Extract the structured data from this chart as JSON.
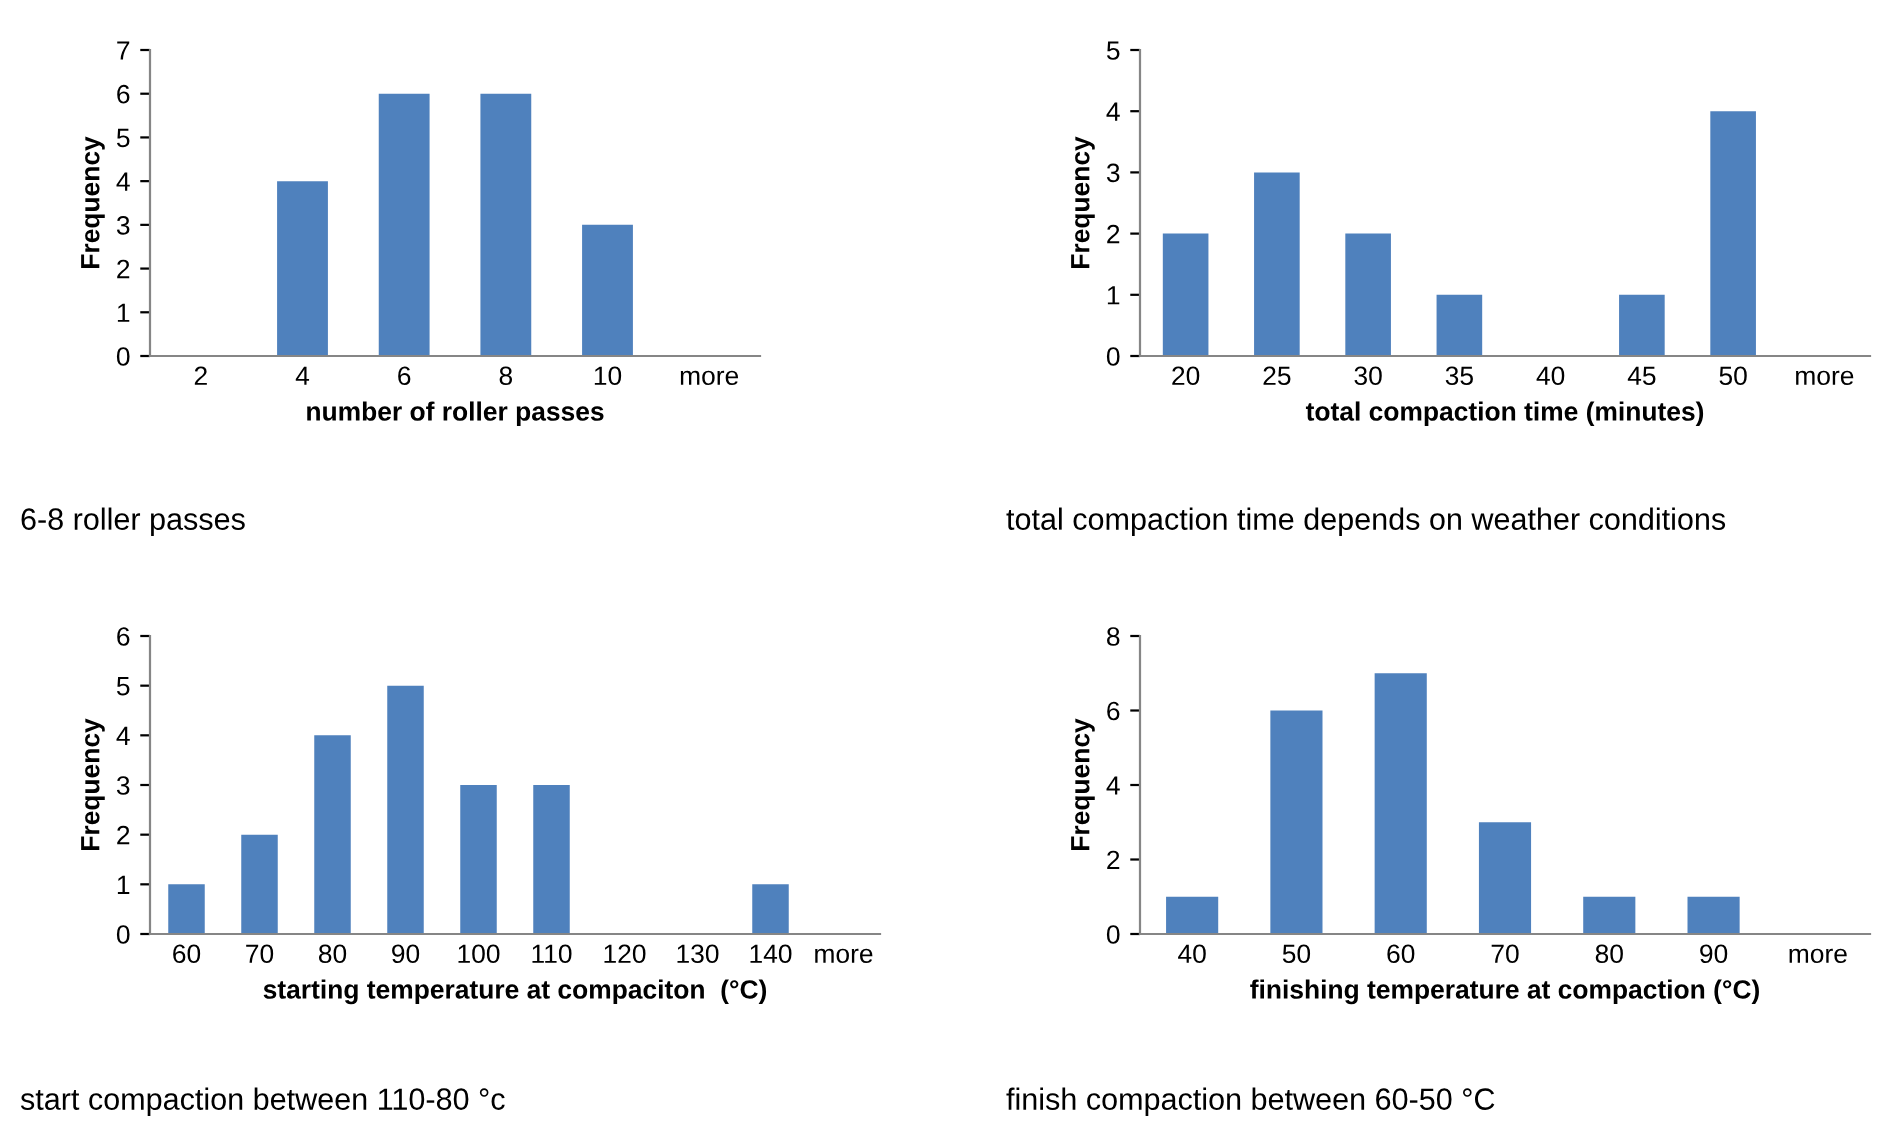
{
  "chart_data": [
    {
      "type": "bar",
      "categories": [
        "2",
        "4",
        "6",
        "8",
        "10",
        "more"
      ],
      "values": [
        0,
        4,
        6,
        6,
        3,
        0
      ],
      "color": "#4f81bd",
      "xlabel": "number of roller passes",
      "ylabel": "Frequency",
      "ylim": [
        0,
        7
      ],
      "yticks": [
        0,
        1,
        2,
        3,
        4,
        5,
        6,
        7
      ],
      "grid": false,
      "legend": false,
      "annotations": [
        "6-8 roller passes"
      ]
    },
    {
      "type": "bar",
      "categories": [
        "20",
        "25",
        "30",
        "35",
        "40",
        "45",
        "50",
        "more"
      ],
      "values": [
        2,
        3,
        2,
        1,
        0,
        1,
        4,
        0
      ],
      "color": "#4f81bd",
      "xlabel": "total compaction time (minutes)",
      "ylabel": "Frequency",
      "ylim": [
        0,
        5
      ],
      "yticks": [
        0,
        1,
        2,
        3,
        4,
        5
      ],
      "grid": false,
      "legend": false,
      "annotations": [
        "total compaction time depends on weather conditions"
      ]
    },
    {
      "type": "bar",
      "categories": [
        "60",
        "70",
        "80",
        "90",
        "100",
        "110",
        "120",
        "130",
        "140",
        "more"
      ],
      "values": [
        1,
        2,
        4,
        5,
        3,
        3,
        0,
        0,
        1,
        0
      ],
      "color": "#4f81bd",
      "xlabel": "starting temperature at compaciton  (°C)",
      "ylabel": "Frequency",
      "ylim": [
        0,
        6
      ],
      "yticks": [
        0,
        1,
        2,
        3,
        4,
        5,
        6
      ],
      "grid": false,
      "legend": false,
      "annotations": [
        "start compaction between 110-80 °c"
      ]
    },
    {
      "type": "bar",
      "categories": [
        "40",
        "50",
        "60",
        "70",
        "80",
        "90",
        "more"
      ],
      "values": [
        1,
        6,
        7,
        3,
        1,
        1,
        0
      ],
      "color": "#4f81bd",
      "xlabel": "finishing temperature at compaction (°C)",
      "ylabel": "Frequency",
      "ylim": [
        0,
        8
      ],
      "yticks": [
        0,
        2,
        4,
        6,
        8
      ],
      "grid": false,
      "legend": false,
      "annotations": [
        "finish compaction between 60-50 °C"
      ]
    }
  ]
}
